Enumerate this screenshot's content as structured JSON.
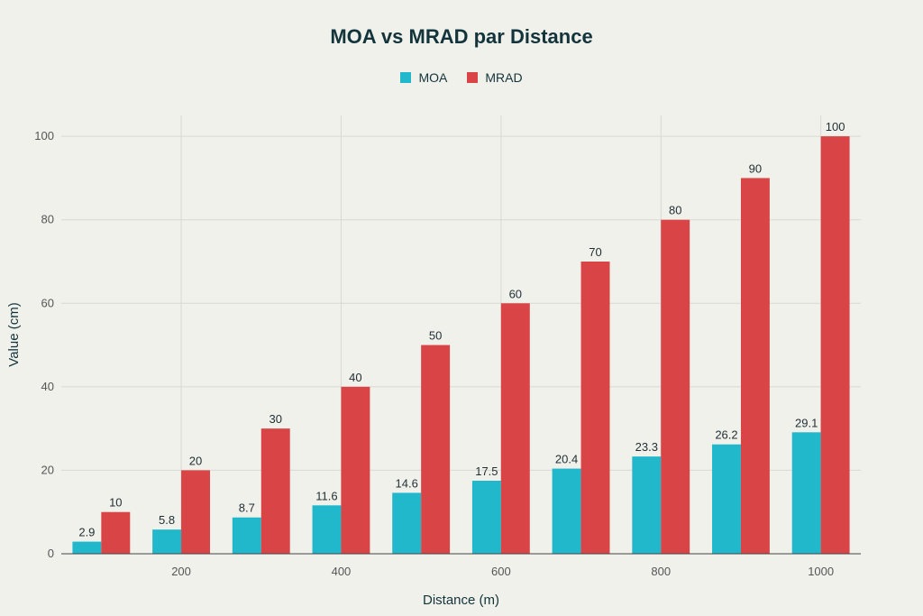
{
  "chart_data": {
    "type": "bar",
    "title": "MOA vs MRAD par Distance",
    "xlabel": "Distance (m)",
    "ylabel": "Value (cm)",
    "x": [
      100,
      200,
      300,
      400,
      500,
      600,
      700,
      800,
      900,
      1000
    ],
    "x_ticks": [
      200,
      400,
      600,
      800,
      1000
    ],
    "y_ticks": [
      0,
      20,
      40,
      60,
      80,
      100
    ],
    "ylim": [
      0,
      105
    ],
    "xlim": [
      50,
      1050
    ],
    "grid": true,
    "legend_position": "top-center",
    "series": [
      {
        "name": "MOA",
        "color": "#21b8cc",
        "values": [
          2.9,
          5.8,
          8.7,
          11.6,
          14.6,
          17.5,
          20.4,
          23.3,
          26.2,
          29.1
        ]
      },
      {
        "name": "MRAD",
        "color": "#d94446",
        "values": [
          10,
          20,
          30,
          40,
          50,
          60,
          70,
          80,
          90,
          100
        ]
      }
    ]
  }
}
